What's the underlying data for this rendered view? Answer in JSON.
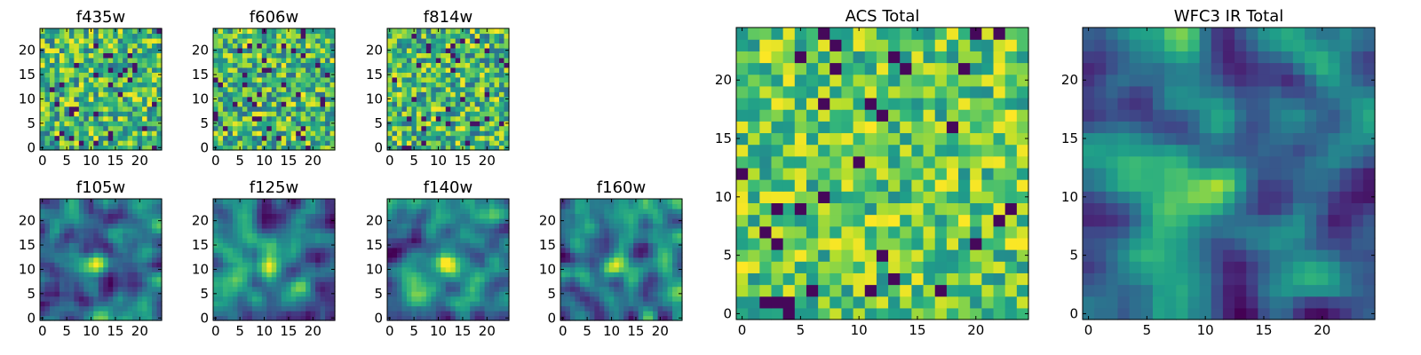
{
  "chart_data": [
    {
      "id": "f435w",
      "type": "heatmap",
      "title": "f435w",
      "grid_size": 25,
      "ylim": [
        0,
        24
      ],
      "xticks": [
        "0",
        "5",
        "10",
        "15",
        "20"
      ],
      "yticks": [
        "0",
        "5",
        "10",
        "15",
        "20"
      ],
      "texture": "noise",
      "seed": 11
    },
    {
      "id": "f606w",
      "type": "heatmap",
      "title": "f606w",
      "grid_size": 25,
      "ylim": [
        0,
        24
      ],
      "xticks": [
        "0",
        "5",
        "10",
        "15",
        "20"
      ],
      "yticks": [
        "0",
        "5",
        "10",
        "15",
        "20"
      ],
      "texture": "noise",
      "seed": 23
    },
    {
      "id": "f814w",
      "type": "heatmap",
      "title": "f814w",
      "grid_size": 25,
      "ylim": [
        0,
        24
      ],
      "xticks": [
        "0",
        "5",
        "10",
        "15",
        "20"
      ],
      "yticks": [
        "0",
        "5",
        "10",
        "15",
        "20"
      ],
      "texture": "noise",
      "seed": 37
    },
    {
      "id": "f105w",
      "type": "heatmap",
      "title": "f105w",
      "grid_size": 25,
      "ylim": [
        0,
        24
      ],
      "xticks": [
        "0",
        "5",
        "10",
        "15",
        "20"
      ],
      "yticks": [
        "0",
        "5",
        "10",
        "15",
        "20"
      ],
      "texture": "smooth",
      "seed": 41,
      "peak": [
        11,
        11
      ]
    },
    {
      "id": "f125w",
      "type": "heatmap",
      "title": "f125w",
      "grid_size": 25,
      "ylim": [
        0,
        24
      ],
      "xticks": [
        "0",
        "5",
        "10",
        "15",
        "20"
      ],
      "yticks": [
        "0",
        "5",
        "10",
        "15",
        "20"
      ],
      "texture": "smooth",
      "seed": 53,
      "peak": [
        11,
        11
      ]
    },
    {
      "id": "f140w",
      "type": "heatmap",
      "title": "f140w",
      "grid_size": 25,
      "ylim": [
        0,
        24
      ],
      "xticks": [
        "0",
        "5",
        "10",
        "15",
        "20"
      ],
      "yticks": [
        "0",
        "5",
        "10",
        "15",
        "20"
      ],
      "texture": "smooth",
      "seed": 67,
      "peak": [
        11,
        11
      ]
    },
    {
      "id": "f160w",
      "type": "heatmap",
      "title": "f160w",
      "grid_size": 25,
      "ylim": [
        0,
        24
      ],
      "xticks": [
        "0",
        "5",
        "10",
        "15",
        "20"
      ],
      "yticks": [
        "0",
        "5",
        "10",
        "15",
        "20"
      ],
      "texture": "smooth",
      "seed": 79,
      "peak": [
        11,
        11
      ]
    },
    {
      "id": "acs_total",
      "type": "heatmap",
      "title": "ACS Total",
      "grid_size": 25,
      "ylim": [
        0,
        24
      ],
      "xticks": [
        "0",
        "5",
        "10",
        "15",
        "20"
      ],
      "yticks": [
        "0",
        "5",
        "10",
        "15",
        "20"
      ],
      "texture": "noise_bright",
      "seed": 97
    },
    {
      "id": "wfc3_total",
      "type": "heatmap",
      "title": "WFC3 IR Total",
      "grid_size": 25,
      "ylim": [
        0,
        24
      ],
      "xticks": [
        "0",
        "5",
        "10",
        "15",
        "20"
      ],
      "yticks": [
        "0",
        "5",
        "10",
        "15",
        "20"
      ],
      "texture": "smooth",
      "seed": 101,
      "peak": [
        11,
        11
      ]
    }
  ]
}
